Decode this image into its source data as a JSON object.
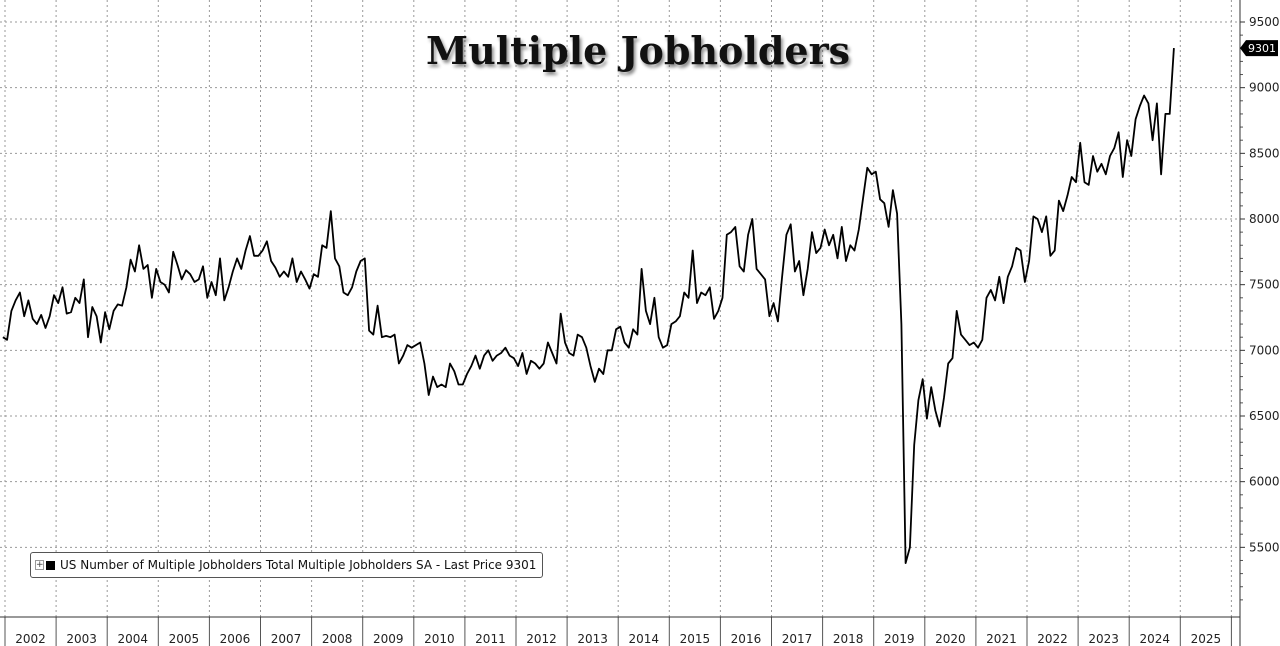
{
  "title": "Multiple Jobholders",
  "legend": {
    "label": "US Number of Multiple Jobholders Total Multiple Jobholders SA - Last Price 9301"
  },
  "last_value_label": "9301",
  "colors": {
    "line": "#000000",
    "grid": "#9a9a9a",
    "background": "#ffffff",
    "last_box": "#000000"
  },
  "chart_data": {
    "type": "line",
    "title": "Multiple Jobholders",
    "xlabel": "",
    "ylabel": "",
    "grid": true,
    "legend_placement": "bottom-left",
    "ylim": [
      5000,
      9500
    ],
    "yticks": [
      5500,
      6000,
      6500,
      7000,
      7500,
      8000,
      8500,
      9000,
      9500
    ],
    "xtick_labels": [
      "2002",
      "2003",
      "2004",
      "2005",
      "2006",
      "2007",
      "2008",
      "2009",
      "2010",
      "2011",
      "2012",
      "2013",
      "2014",
      "2015",
      "2016",
      "2017",
      "2018",
      "2019",
      "2020",
      "2021",
      "2022",
      "2023",
      "2024",
      "2025"
    ],
    "series": [
      {
        "name": "US Number of Multiple Jobholders Total Multiple Jobholders SA",
        "last_value": 9301,
        "points": [
          [
            "2001-12",
            7100
          ],
          [
            "2002-01",
            7080
          ],
          [
            "2002-02",
            7300
          ],
          [
            "2002-03",
            7380
          ],
          [
            "2002-04",
            7440
          ],
          [
            "2002-05",
            7260
          ],
          [
            "2002-06",
            7380
          ],
          [
            "2002-07",
            7240
          ],
          [
            "2002-08",
            7200
          ],
          [
            "2002-09",
            7270
          ],
          [
            "2002-10",
            7170
          ],
          [
            "2002-11",
            7260
          ],
          [
            "2002-12",
            7420
          ],
          [
            "2003-01",
            7360
          ],
          [
            "2003-02",
            7480
          ],
          [
            "2003-03",
            7280
          ],
          [
            "2003-04",
            7290
          ],
          [
            "2003-05",
            7400
          ],
          [
            "2003-06",
            7360
          ],
          [
            "2003-07",
            7540
          ],
          [
            "2003-08",
            7100
          ],
          [
            "2003-09",
            7330
          ],
          [
            "2003-10",
            7260
          ],
          [
            "2003-11",
            7060
          ],
          [
            "2003-12",
            7290
          ],
          [
            "2004-01",
            7160
          ],
          [
            "2004-02",
            7300
          ],
          [
            "2004-03",
            7350
          ],
          [
            "2004-04",
            7340
          ],
          [
            "2004-05",
            7480
          ],
          [
            "2004-06",
            7690
          ],
          [
            "2004-07",
            7600
          ],
          [
            "2004-08",
            7800
          ],
          [
            "2004-09",
            7620
          ],
          [
            "2004-10",
            7650
          ],
          [
            "2004-11",
            7400
          ],
          [
            "2004-12",
            7620
          ],
          [
            "2005-01",
            7520
          ],
          [
            "2005-02",
            7500
          ],
          [
            "2005-03",
            7440
          ],
          [
            "2005-04",
            7750
          ],
          [
            "2005-05",
            7650
          ],
          [
            "2005-06",
            7540
          ],
          [
            "2005-07",
            7610
          ],
          [
            "2005-08",
            7580
          ],
          [
            "2005-09",
            7520
          ],
          [
            "2005-10",
            7540
          ],
          [
            "2005-11",
            7640
          ],
          [
            "2005-12",
            7400
          ],
          [
            "2006-01",
            7520
          ],
          [
            "2006-02",
            7420
          ],
          [
            "2006-03",
            7700
          ],
          [
            "2006-04",
            7380
          ],
          [
            "2006-05",
            7480
          ],
          [
            "2006-06",
            7600
          ],
          [
            "2006-07",
            7700
          ],
          [
            "2006-08",
            7620
          ],
          [
            "2006-09",
            7760
          ],
          [
            "2006-10",
            7870
          ],
          [
            "2006-11",
            7720
          ],
          [
            "2006-12",
            7720
          ],
          [
            "2007-01",
            7760
          ],
          [
            "2007-02",
            7830
          ],
          [
            "2007-03",
            7680
          ],
          [
            "2007-04",
            7630
          ],
          [
            "2007-05",
            7560
          ],
          [
            "2007-06",
            7600
          ],
          [
            "2007-07",
            7560
          ],
          [
            "2007-08",
            7700
          ],
          [
            "2007-09",
            7520
          ],
          [
            "2007-10",
            7600
          ],
          [
            "2007-11",
            7540
          ],
          [
            "2007-12",
            7470
          ],
          [
            "2008-01",
            7580
          ],
          [
            "2008-02",
            7560
          ],
          [
            "2008-03",
            7800
          ],
          [
            "2008-04",
            7780
          ],
          [
            "2008-05",
            8060
          ],
          [
            "2008-06",
            7700
          ],
          [
            "2008-07",
            7640
          ],
          [
            "2008-08",
            7440
          ],
          [
            "2008-09",
            7420
          ],
          [
            "2008-10",
            7480
          ],
          [
            "2008-11",
            7600
          ],
          [
            "2008-12",
            7680
          ],
          [
            "2009-01",
            7700
          ],
          [
            "2009-02",
            7150
          ],
          [
            "2009-03",
            7120
          ],
          [
            "2009-04",
            7340
          ],
          [
            "2009-05",
            7100
          ],
          [
            "2009-06",
            7110
          ],
          [
            "2009-07",
            7100
          ],
          [
            "2009-08",
            7120
          ],
          [
            "2009-09",
            6900
          ],
          [
            "2009-10",
            6960
          ],
          [
            "2009-11",
            7040
          ],
          [
            "2009-12",
            7020
          ],
          [
            "2010-01",
            7040
          ],
          [
            "2010-02",
            7060
          ],
          [
            "2010-03",
            6900
          ],
          [
            "2010-04",
            6660
          ],
          [
            "2010-05",
            6800
          ],
          [
            "2010-06",
            6720
          ],
          [
            "2010-07",
            6740
          ],
          [
            "2010-08",
            6720
          ],
          [
            "2010-09",
            6900
          ],
          [
            "2010-10",
            6840
          ],
          [
            "2010-11",
            6740
          ],
          [
            "2010-12",
            6740
          ],
          [
            "2011-01",
            6820
          ],
          [
            "2011-02",
            6880
          ],
          [
            "2011-03",
            6960
          ],
          [
            "2011-04",
            6860
          ],
          [
            "2011-05",
            6960
          ],
          [
            "2011-06",
            7000
          ],
          [
            "2011-07",
            6920
          ],
          [
            "2011-08",
            6960
          ],
          [
            "2011-09",
            6980
          ],
          [
            "2011-10",
            7020
          ],
          [
            "2011-11",
            6960
          ],
          [
            "2011-12",
            6940
          ],
          [
            "2012-01",
            6880
          ],
          [
            "2012-02",
            6980
          ],
          [
            "2012-03",
            6820
          ],
          [
            "2012-04",
            6920
          ],
          [
            "2012-05",
            6900
          ],
          [
            "2012-06",
            6860
          ],
          [
            "2012-07",
            6900
          ],
          [
            "2012-08",
            7060
          ],
          [
            "2012-09",
            6980
          ],
          [
            "2012-10",
            6900
          ],
          [
            "2012-11",
            7280
          ],
          [
            "2012-12",
            7060
          ],
          [
            "2013-01",
            6980
          ],
          [
            "2013-02",
            6960
          ],
          [
            "2013-03",
            7120
          ],
          [
            "2013-04",
            7100
          ],
          [
            "2013-05",
            7020
          ],
          [
            "2013-06",
            6880
          ],
          [
            "2013-07",
            6760
          ],
          [
            "2013-08",
            6860
          ],
          [
            "2013-09",
            6820
          ],
          [
            "2013-10",
            7000
          ],
          [
            "2013-11",
            7000
          ],
          [
            "2013-12",
            7160
          ],
          [
            "2014-01",
            7180
          ],
          [
            "2014-02",
            7060
          ],
          [
            "2014-03",
            7020
          ],
          [
            "2014-04",
            7160
          ],
          [
            "2014-05",
            7120
          ],
          [
            "2014-06",
            7620
          ],
          [
            "2014-07",
            7300
          ],
          [
            "2014-08",
            7200
          ],
          [
            "2014-09",
            7400
          ],
          [
            "2014-10",
            7100
          ],
          [
            "2014-11",
            7020
          ],
          [
            "2014-12",
            7040
          ],
          [
            "2015-01",
            7200
          ],
          [
            "2015-02",
            7220
          ],
          [
            "2015-03",
            7260
          ],
          [
            "2015-04",
            7440
          ],
          [
            "2015-05",
            7400
          ],
          [
            "2015-06",
            7760
          ],
          [
            "2015-07",
            7360
          ],
          [
            "2015-08",
            7440
          ],
          [
            "2015-09",
            7420
          ],
          [
            "2015-10",
            7480
          ],
          [
            "2015-11",
            7240
          ],
          [
            "2015-12",
            7300
          ],
          [
            "2016-01",
            7400
          ],
          [
            "2016-02",
            7880
          ],
          [
            "2016-03",
            7900
          ],
          [
            "2016-04",
            7940
          ],
          [
            "2016-05",
            7640
          ],
          [
            "2016-06",
            7600
          ],
          [
            "2016-07",
            7880
          ],
          [
            "2016-08",
            8000
          ],
          [
            "2016-09",
            7620
          ],
          [
            "2016-10",
            7580
          ],
          [
            "2016-11",
            7540
          ],
          [
            "2016-12",
            7260
          ],
          [
            "2017-01",
            7360
          ],
          [
            "2017-02",
            7220
          ],
          [
            "2017-03",
            7560
          ],
          [
            "2017-04",
            7880
          ],
          [
            "2017-05",
            7960
          ],
          [
            "2017-06",
            7600
          ],
          [
            "2017-07",
            7680
          ],
          [
            "2017-08",
            7420
          ],
          [
            "2017-09",
            7620
          ],
          [
            "2017-10",
            7900
          ],
          [
            "2017-11",
            7740
          ],
          [
            "2017-12",
            7780
          ],
          [
            "2018-01",
            7920
          ],
          [
            "2018-02",
            7800
          ],
          [
            "2018-03",
            7880
          ],
          [
            "2018-04",
            7700
          ],
          [
            "2018-05",
            7940
          ],
          [
            "2018-06",
            7680
          ],
          [
            "2018-07",
            7800
          ],
          [
            "2018-08",
            7760
          ],
          [
            "2018-09",
            7920
          ],
          [
            "2018-10",
            8160
          ],
          [
            "2018-11",
            8390
          ],
          [
            "2018-12",
            8340
          ],
          [
            "2019-01",
            8360
          ],
          [
            "2019-02",
            8150
          ],
          [
            "2019-03",
            8120
          ],
          [
            "2019-04",
            7940
          ],
          [
            "2019-05",
            8220
          ],
          [
            "2019-06",
            8040
          ],
          [
            "2019-07",
            7200
          ],
          [
            "2019-08",
            5380
          ],
          [
            "2019-09",
            5500
          ],
          [
            "2019-10",
            6280
          ],
          [
            "2019-11",
            6620
          ],
          [
            "2019-12",
            6780
          ],
          [
            "2020-01",
            6480
          ],
          [
            "2020-02",
            6720
          ],
          [
            "2020-03",
            6540
          ],
          [
            "2020-04",
            6420
          ],
          [
            "2020-05",
            6640
          ],
          [
            "2020-06",
            6900
          ],
          [
            "2020-07",
            6940
          ],
          [
            "2020-08",
            7300
          ],
          [
            "2020-09",
            7120
          ],
          [
            "2020-10",
            7080
          ],
          [
            "2020-11",
            7040
          ],
          [
            "2020-12",
            7060
          ],
          [
            "2021-01",
            7020
          ],
          [
            "2021-02",
            7080
          ],
          [
            "2021-03",
            7400
          ],
          [
            "2021-04",
            7460
          ],
          [
            "2021-05",
            7380
          ],
          [
            "2021-06",
            7560
          ],
          [
            "2021-07",
            7360
          ],
          [
            "2021-08",
            7560
          ],
          [
            "2021-09",
            7640
          ],
          [
            "2021-10",
            7780
          ],
          [
            "2021-11",
            7760
          ],
          [
            "2021-12",
            7520
          ],
          [
            "2022-01",
            7680
          ],
          [
            "2022-02",
            8020
          ],
          [
            "2022-03",
            8000
          ],
          [
            "2022-04",
            7900
          ],
          [
            "2022-05",
            8020
          ],
          [
            "2022-06",
            7720
          ],
          [
            "2022-07",
            7760
          ],
          [
            "2022-08",
            8140
          ],
          [
            "2022-09",
            8060
          ],
          [
            "2022-10",
            8180
          ],
          [
            "2022-11",
            8320
          ],
          [
            "2022-12",
            8280
          ],
          [
            "2023-01",
            8580
          ],
          [
            "2023-02",
            8280
          ],
          [
            "2023-03",
            8260
          ],
          [
            "2023-04",
            8480
          ],
          [
            "2023-05",
            8360
          ],
          [
            "2023-06",
            8420
          ],
          [
            "2023-07",
            8340
          ],
          [
            "2023-08",
            8480
          ],
          [
            "2023-09",
            8540
          ],
          [
            "2023-10",
            8660
          ],
          [
            "2023-11",
            8320
          ],
          [
            "2023-12",
            8600
          ],
          [
            "2024-01",
            8480
          ],
          [
            "2024-02",
            8760
          ],
          [
            "2024-03",
            8860
          ],
          [
            "2024-04",
            8940
          ],
          [
            "2024-05",
            8880
          ],
          [
            "2024-06",
            8600
          ],
          [
            "2024-07",
            8880
          ],
          [
            "2024-08",
            8340
          ],
          [
            "2024-09",
            8800
          ],
          [
            "2024-10",
            8800
          ],
          [
            "2024-11",
            9301
          ]
        ]
      }
    ]
  }
}
